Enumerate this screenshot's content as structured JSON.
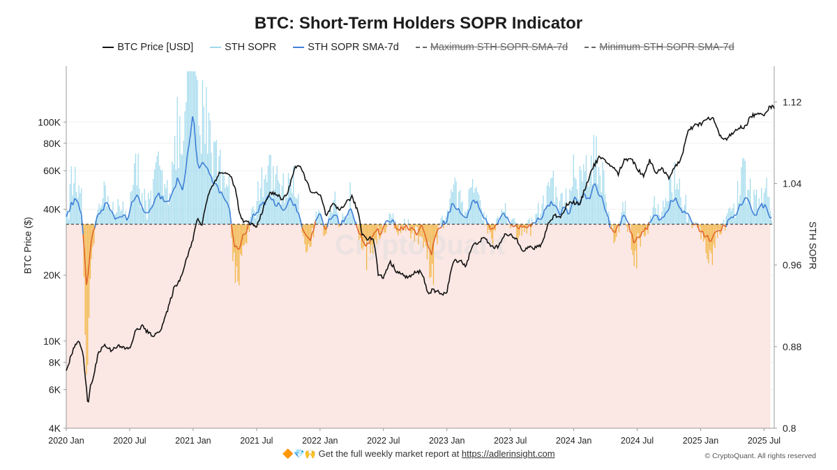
{
  "title": "BTC: Short-Term Holders SOPR Indicator",
  "legend": [
    {
      "label": "BTC Price [USD]",
      "color": "#111111",
      "style": "solid",
      "struck": false
    },
    {
      "label": "STH SOPR",
      "color": "#9fd9ec",
      "style": "solid",
      "struck": false
    },
    {
      "label": "STH SOPR SMA-7d",
      "color": "#3f7fd6",
      "style": "solid",
      "struck": false
    },
    {
      "label": "Maximum STH SOPR SMA-7d",
      "color": "#666666",
      "style": "dashed",
      "struck": true
    },
    {
      "label": "Minimum STH SOPR SMA-7d",
      "color": "#666666",
      "style": "dashed",
      "struck": true
    }
  ],
  "footer": {
    "emoji": "🔶💎🙌",
    "text": "Get the full weekly market report at",
    "link": "https://adlerinsight.com"
  },
  "copyright": "© CryptoQuant. All rights reserved",
  "watermark": "CryptoQuant",
  "colors": {
    "price": "#111111",
    "sopr": "#9fd9ec",
    "sma": "#3f7fd6",
    "sopr_below": "#f2b43c",
    "sma_below": "#e0662a",
    "below_fill": "#fbe7e3",
    "threshold": "#333333"
  },
  "chart_data": {
    "type": "line",
    "xlabel": "",
    "ylabel_left": "BTC Price ($)",
    "ylabel_right": "STH SOPR",
    "x_ticks": [
      "2020 Jan",
      "2020 Jul",
      "2021 Jan",
      "2021 Jul",
      "2022 Jan",
      "2022 Jul",
      "2023 Jan",
      "2023 Jul",
      "2024 Jan",
      "2024 Jul",
      "2025 Jan",
      "2025 Jul"
    ],
    "x_range": [
      2020.0,
      2025.58
    ],
    "left_axis": {
      "scale": "log",
      "ticks": [
        4000,
        6000,
        8000,
        10000,
        20000,
        40000,
        60000,
        80000,
        100000
      ],
      "tick_labels": [
        "4K",
        "6K",
        "8K",
        "10K",
        "20K",
        "40K",
        "60K",
        "80K",
        "100K"
      ],
      "ylim": [
        4000,
        180000
      ]
    },
    "right_axis": {
      "scale": "linear",
      "ticks": [
        0.8,
        0.88,
        0.96,
        1.04,
        1.12
      ],
      "tick_labels": [
        "0.8",
        "0.88",
        "0.96",
        "1.04",
        "1.12"
      ],
      "ylim": [
        0.8,
        1.155
      ]
    },
    "threshold": 1.0,
    "btc_price": {
      "x": [
        2020.0,
        2020.05,
        2020.1,
        2020.13,
        2020.17,
        2020.19,
        2020.22,
        2020.25,
        2020.3,
        2020.35,
        2020.4,
        2020.45,
        2020.5,
        2020.55,
        2020.6,
        2020.65,
        2020.7,
        2020.75,
        2020.8,
        2020.85,
        2020.9,
        2020.95,
        2021.0,
        2021.03,
        2021.07,
        2021.12,
        2021.16,
        2021.2,
        2021.25,
        2021.3,
        2021.33,
        2021.37,
        2021.4,
        2021.45,
        2021.5,
        2021.55,
        2021.6,
        2021.65,
        2021.7,
        2021.75,
        2021.8,
        2021.83,
        2021.87,
        2021.92,
        2021.97,
        2022.0,
        2022.05,
        2022.1,
        2022.15,
        2022.2,
        2022.25,
        2022.3,
        2022.33,
        2022.37,
        2022.42,
        2022.46,
        2022.5,
        2022.55,
        2022.6,
        2022.65,
        2022.7,
        2022.75,
        2022.8,
        2022.85,
        2022.88,
        2022.92,
        2022.97,
        2023.0,
        2023.05,
        2023.1,
        2023.15,
        2023.2,
        2023.25,
        2023.3,
        2023.35,
        2023.4,
        2023.45,
        2023.5,
        2023.55,
        2023.6,
        2023.65,
        2023.7,
        2023.75,
        2023.8,
        2023.85,
        2023.9,
        2023.95,
        2024.0,
        2024.05,
        2024.1,
        2024.15,
        2024.2,
        2024.25,
        2024.3,
        2024.35,
        2024.4,
        2024.45,
        2024.5,
        2024.55,
        2024.6,
        2024.65,
        2024.7,
        2024.75,
        2024.8,
        2024.85,
        2024.9,
        2024.95,
        2025.0,
        2025.05,
        2025.1,
        2025.15,
        2025.2,
        2025.25,
        2025.3,
        2025.35,
        2025.4,
        2025.45,
        2025.5,
        2025.55,
        2025.58
      ],
      "y": [
        7200,
        9000,
        10200,
        8800,
        5000,
        6200,
        7000,
        8800,
        9600,
        9100,
        9500,
        9300,
        9200,
        11200,
        11700,
        10800,
        10600,
        11500,
        13800,
        17500,
        19200,
        24000,
        29000,
        36000,
        34000,
        47000,
        52000,
        58000,
        59000,
        56000,
        50000,
        37000,
        35000,
        34500,
        33000,
        40000,
        47000,
        47500,
        44000,
        48000,
        62000,
        63500,
        58000,
        49000,
        47000,
        46500,
        37000,
        42000,
        39500,
        42500,
        45500,
        39000,
        31000,
        29500,
        29500,
        20000,
        19500,
        23000,
        21000,
        20000,
        19500,
        20500,
        20800,
        16500,
        17000,
        16800,
        16500,
        16600,
        23000,
        23500,
        22000,
        27000,
        28500,
        29500,
        27000,
        26800,
        30500,
        30300,
        29200,
        26000,
        26800,
        26500,
        27800,
        34500,
        37500,
        37000,
        42500,
        43000,
        42000,
        52000,
        62000,
        69000,
        66000,
        63000,
        58000,
        67000,
        69000,
        61000,
        57000,
        67000,
        58500,
        61000,
        56000,
        62000,
        69000,
        90000,
        96000,
        98000,
        103000,
        104000,
        86000,
        84000,
        88000,
        94000,
        95000,
        107000,
        108000,
        109000,
        118000,
        116000
      ]
    },
    "sth_sopr_sma7": {
      "x": [
        2020.0,
        2020.04,
        2020.08,
        2020.12,
        2020.16,
        2020.2,
        2020.24,
        2020.28,
        2020.32,
        2020.36,
        2020.4,
        2020.44,
        2020.48,
        2020.52,
        2020.56,
        2020.6,
        2020.64,
        2020.68,
        2020.72,
        2020.76,
        2020.8,
        2020.84,
        2020.88,
        2020.92,
        2020.96,
        2021.0,
        2021.04,
        2021.08,
        2021.12,
        2021.16,
        2021.2,
        2021.24,
        2021.28,
        2021.32,
        2021.36,
        2021.4,
        2021.44,
        2021.48,
        2021.52,
        2021.56,
        2021.6,
        2021.64,
        2021.68,
        2021.72,
        2021.76,
        2021.8,
        2021.84,
        2021.88,
        2021.92,
        2021.96,
        2022.0,
        2022.04,
        2022.08,
        2022.12,
        2022.16,
        2022.2,
        2022.24,
        2022.28,
        2022.32,
        2022.36,
        2022.4,
        2022.44,
        2022.48,
        2022.52,
        2022.56,
        2022.6,
        2022.64,
        2022.68,
        2022.72,
        2022.76,
        2022.8,
        2022.84,
        2022.88,
        2022.92,
        2022.96,
        2023.0,
        2023.04,
        2023.08,
        2023.12,
        2023.16,
        2023.2,
        2023.24,
        2023.28,
        2023.32,
        2023.36,
        2023.4,
        2023.44,
        2023.48,
        2023.52,
        2023.56,
        2023.6,
        2023.64,
        2023.68,
        2023.72,
        2023.76,
        2023.8,
        2023.84,
        2023.88,
        2023.92,
        2023.96,
        2024.0,
        2024.04,
        2024.08,
        2024.12,
        2024.16,
        2024.2,
        2024.24,
        2024.28,
        2024.32,
        2024.36,
        2024.4,
        2024.44,
        2024.48,
        2024.52,
        2024.56,
        2024.6,
        2024.64,
        2024.68,
        2024.72,
        2024.76,
        2024.8,
        2024.84,
        2024.88,
        2024.92,
        2024.96,
        2025.0,
        2025.04,
        2025.08,
        2025.12,
        2025.16,
        2025.2,
        2025.24,
        2025.28,
        2025.32,
        2025.36,
        2025.4,
        2025.44,
        2025.48,
        2025.52,
        2025.56
      ],
      "y": [
        1.005,
        1.02,
        1.025,
        1.01,
        0.94,
        0.985,
        1.005,
        1.015,
        1.02,
        1.01,
        1.005,
        1.01,
        1.005,
        1.02,
        1.028,
        1.015,
        1.01,
        1.015,
        1.03,
        1.025,
        1.02,
        1.03,
        1.045,
        1.035,
        1.07,
        1.11,
        1.05,
        1.06,
        1.055,
        1.04,
        1.035,
        1.025,
        1.02,
        0.98,
        0.975,
        0.99,
        0.998,
        1.01,
        1.015,
        1.02,
        1.03,
        1.02,
        1.02,
        1.015,
        1.025,
        1.02,
        1.005,
        0.99,
        0.985,
        1.0,
        1.01,
        0.995,
        1.005,
        1.01,
        1.0,
        1.005,
        1.015,
        1.0,
        0.99,
        0.98,
        0.985,
        0.995,
        0.99,
        1.0,
        1.005,
        0.998,
        0.995,
        1.0,
        0.995,
        0.992,
        0.998,
        0.985,
        0.97,
        0.995,
        1.0,
        1.005,
        1.02,
        1.015,
        1.01,
        1.005,
        1.025,
        1.02,
        1.01,
        1.0,
        0.995,
        1.0,
        1.01,
        1.005,
        1.0,
        0.995,
        1.0,
        0.998,
        1.0,
        1.005,
        1.01,
        1.02,
        1.02,
        1.01,
        1.015,
        1.01,
        1.025,
        1.02,
        1.03,
        1.025,
        1.04,
        1.03,
        1.02,
        1.0,
        0.99,
        1.0,
        1.01,
        0.995,
        0.98,
        0.99,
        0.995,
        1.0,
        1.01,
        1.005,
        1.01,
        1.02,
        1.025,
        1.015,
        1.01,
        1.005,
        1.0,
        0.995,
        0.988,
        0.985,
        0.99,
        0.995,
        1.0,
        1.005,
        1.01,
        1.02,
        1.025,
        1.015,
        1.01,
        1.02,
        1.015,
        1.006
      ]
    }
  }
}
